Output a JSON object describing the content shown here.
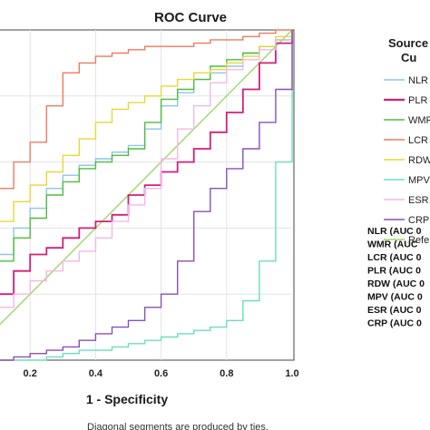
{
  "chart_data": {
    "type": "line",
    "title": "ROC Curve",
    "xlabel": "1 - Specificity",
    "ylabel": "",
    "footnote": "Diagonal segments are produced by ties.",
    "xlim": [
      0,
      1
    ],
    "ylim": [
      0,
      1
    ],
    "x_ticks": [
      "0.2",
      "0.4",
      "0.6",
      "0.8",
      "1.0"
    ],
    "grid": true,
    "legend_title_lines": [
      "Source",
      "Cu"
    ],
    "legend_placement": "right",
    "series": [
      {
        "name": "NLR",
        "color": "#8fc3e8",
        "x": [
          0.0,
          0.05,
          0.1,
          0.15,
          0.2,
          0.25,
          0.3,
          0.35,
          0.4,
          0.45,
          0.5,
          0.55,
          0.6,
          0.65,
          0.7,
          0.75,
          0.8,
          0.85,
          0.9,
          0.95,
          1.0
        ],
        "y": [
          0.2,
          0.26,
          0.32,
          0.4,
          0.46,
          0.52,
          0.56,
          0.59,
          0.61,
          0.63,
          0.65,
          0.7,
          0.77,
          0.81,
          0.85,
          0.87,
          0.89,
          0.93,
          0.95,
          0.97,
          1.0
        ]
      },
      {
        "name": "PLR",
        "color": "#d21f7a",
        "x": [
          0.0,
          0.05,
          0.1,
          0.15,
          0.2,
          0.25,
          0.3,
          0.35,
          0.4,
          0.45,
          0.5,
          0.55,
          0.6,
          0.65,
          0.7,
          0.75,
          0.8,
          0.85,
          0.9,
          0.95,
          1.0
        ],
        "y": [
          0.05,
          0.13,
          0.2,
          0.27,
          0.32,
          0.34,
          0.37,
          0.4,
          0.42,
          0.44,
          0.5,
          0.53,
          0.57,
          0.6,
          0.64,
          0.69,
          0.75,
          0.82,
          0.9,
          0.96,
          1.0
        ]
      },
      {
        "name": "WMR",
        "color": "#4cbf3a",
        "x": [
          0.0,
          0.05,
          0.1,
          0.15,
          0.2,
          0.25,
          0.3,
          0.35,
          0.4,
          0.45,
          0.5,
          0.55,
          0.6,
          0.65,
          0.7,
          0.75,
          0.8,
          0.85,
          0.9,
          0.95,
          1.0
        ],
        "y": [
          0.17,
          0.23,
          0.3,
          0.37,
          0.43,
          0.5,
          0.54,
          0.58,
          0.6,
          0.62,
          0.64,
          0.72,
          0.79,
          0.82,
          0.85,
          0.89,
          0.91,
          0.93,
          0.95,
          0.97,
          1.0
        ]
      },
      {
        "name": "LCR",
        "color": "#ef7a60",
        "x": [
          0.0,
          0.05,
          0.1,
          0.15,
          0.2,
          0.25,
          0.3,
          0.35,
          0.4,
          0.45,
          0.5,
          0.55,
          0.6,
          0.65,
          0.7,
          0.75,
          0.8,
          0.85,
          0.9,
          0.95,
          1.0
        ],
        "y": [
          0.3,
          0.4,
          0.52,
          0.6,
          0.66,
          0.77,
          0.87,
          0.9,
          0.92,
          0.93,
          0.94,
          0.95,
          0.95,
          0.95,
          0.96,
          0.97,
          0.97,
          0.98,
          0.99,
          1.0,
          1.0
        ]
      },
      {
        "name": "RDW",
        "color": "#e5d83a",
        "x": [
          0.0,
          0.05,
          0.1,
          0.15,
          0.2,
          0.25,
          0.3,
          0.35,
          0.4,
          0.45,
          0.5,
          0.55,
          0.6,
          0.65,
          0.7,
          0.75,
          0.8,
          0.85,
          0.9,
          0.95,
          1.0
        ],
        "y": [
          0.25,
          0.34,
          0.42,
          0.48,
          0.53,
          0.57,
          0.62,
          0.67,
          0.72,
          0.76,
          0.78,
          0.8,
          0.83,
          0.85,
          0.87,
          0.88,
          0.9,
          0.92,
          0.95,
          0.98,
          1.0
        ]
      },
      {
        "name": "MPV",
        "color": "#6be0b6",
        "x": [
          0.0,
          0.05,
          0.1,
          0.15,
          0.2,
          0.25,
          0.3,
          0.35,
          0.4,
          0.45,
          0.5,
          0.55,
          0.6,
          0.65,
          0.7,
          0.75,
          0.8,
          0.85,
          0.9,
          0.95,
          1.0
        ],
        "y": [
          0.0,
          0.0,
          0.0,
          0.0,
          0.0,
          0.01,
          0.02,
          0.03,
          0.03,
          0.04,
          0.05,
          0.06,
          0.07,
          0.08,
          0.09,
          0.1,
          0.12,
          0.18,
          0.3,
          0.6,
          0.95
        ]
      },
      {
        "name": "ESR",
        "color": "#f2b8e6",
        "x": [
          0.0,
          0.05,
          0.1,
          0.15,
          0.2,
          0.25,
          0.3,
          0.35,
          0.4,
          0.45,
          0.5,
          0.55,
          0.6,
          0.65,
          0.7,
          0.75,
          0.8,
          0.85,
          0.9,
          0.95,
          1.0
        ],
        "y": [
          0.08,
          0.12,
          0.16,
          0.2,
          0.24,
          0.27,
          0.3,
          0.33,
          0.37,
          0.42,
          0.47,
          0.52,
          0.61,
          0.7,
          0.77,
          0.84,
          0.88,
          0.91,
          0.94,
          0.97,
          1.0
        ]
      },
      {
        "name": "CRP",
        "color": "#8650bf",
        "x": [
          0.0,
          0.05,
          0.1,
          0.15,
          0.2,
          0.25,
          0.3,
          0.35,
          0.4,
          0.45,
          0.5,
          0.55,
          0.6,
          0.65,
          0.7,
          0.75,
          0.8,
          0.85,
          0.9,
          0.95,
          1.0
        ],
        "y": [
          0.0,
          0.0,
          0.0,
          0.01,
          0.02,
          0.03,
          0.04,
          0.06,
          0.08,
          0.1,
          0.12,
          0.16,
          0.2,
          0.3,
          0.45,
          0.52,
          0.58,
          0.64,
          0.72,
          0.82,
          1.0
        ]
      },
      {
        "name": "Refe",
        "color": "#9bd86a",
        "x": [
          0.0,
          1.0
        ],
        "y": [
          0.0,
          1.0
        ]
      }
    ],
    "auc_labels": [
      "NLR (AUC 0",
      "WMR (AUC",
      "LCR (AUC 0",
      "PLR (AUC 0",
      "RDW (AUC 0",
      "MPV (AUC 0",
      "ESR (AUC 0",
      "CRP (AUC 0"
    ]
  }
}
